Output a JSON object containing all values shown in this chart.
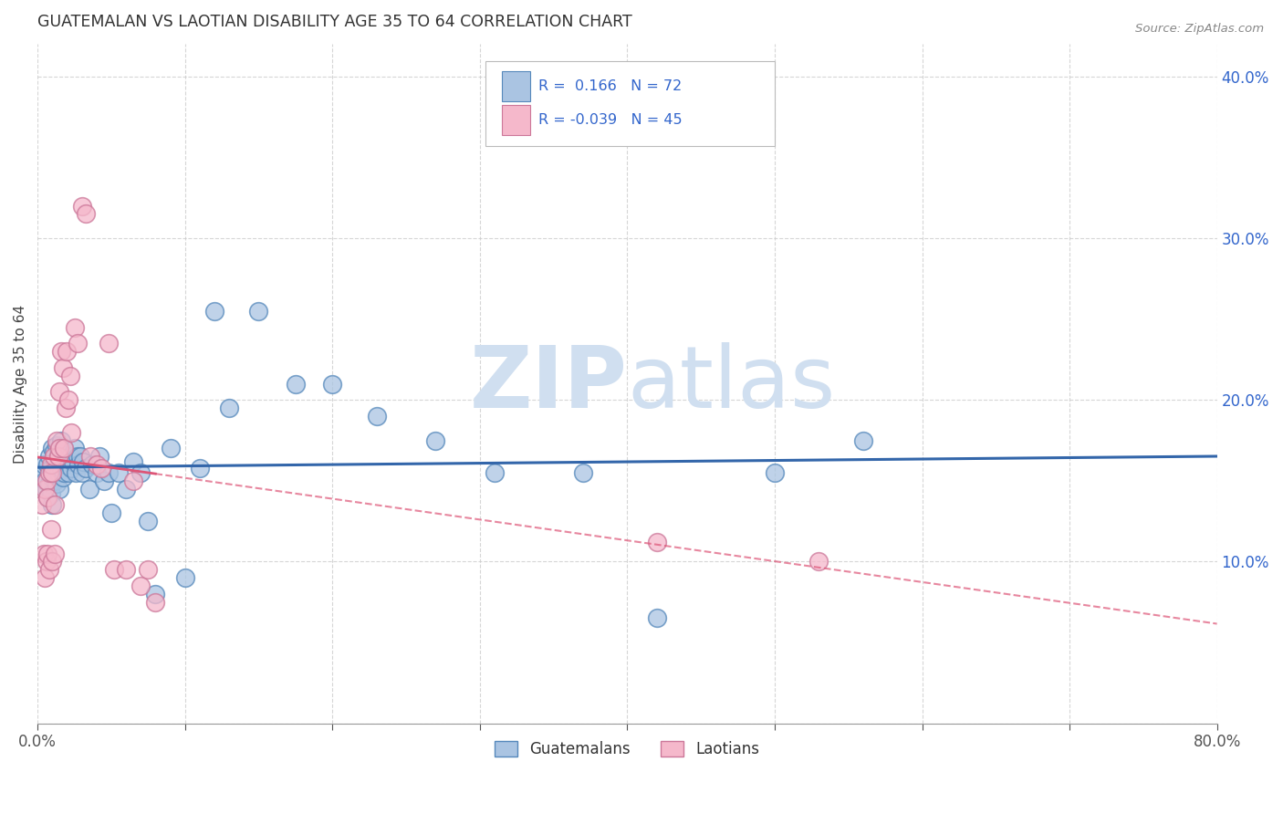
{
  "title": "GUATEMALAN VS LAOTIAN DISABILITY AGE 35 TO 64 CORRELATION CHART",
  "source": "Source: ZipAtlas.com",
  "ylabel": "Disability Age 35 to 64",
  "xlim": [
    0.0,
    0.8
  ],
  "ylim": [
    0.0,
    0.42
  ],
  "guatemalan_R": 0.166,
  "guatemalan_N": 72,
  "laotian_R": -0.039,
  "laotian_N": 45,
  "guatemalan_color": "#aac4e2",
  "guatemalan_edge": "#5588bb",
  "laotian_color": "#f5b8cb",
  "laotian_edge": "#cc7799",
  "regression_guatemalan_color": "#3366aa",
  "regression_laotian_color": "#dd5577",
  "watermark_color": "#d0dff0",
  "background_color": "#ffffff",
  "grid_color": "#cccccc",
  "legend_text_color": "#3366cc",
  "guatemalan_x": [
    0.003,
    0.004,
    0.005,
    0.006,
    0.007,
    0.007,
    0.008,
    0.008,
    0.009,
    0.009,
    0.01,
    0.01,
    0.01,
    0.011,
    0.011,
    0.012,
    0.012,
    0.013,
    0.013,
    0.013,
    0.014,
    0.014,
    0.015,
    0.015,
    0.016,
    0.016,
    0.017,
    0.017,
    0.018,
    0.018,
    0.019,
    0.02,
    0.021,
    0.022,
    0.023,
    0.024,
    0.025,
    0.026,
    0.027,
    0.028,
    0.029,
    0.03,
    0.031,
    0.033,
    0.035,
    0.037,
    0.04,
    0.042,
    0.045,
    0.048,
    0.05,
    0.055,
    0.06,
    0.065,
    0.07,
    0.075,
    0.08,
    0.09,
    0.1,
    0.11,
    0.12,
    0.13,
    0.15,
    0.175,
    0.2,
    0.23,
    0.27,
    0.31,
    0.37,
    0.42,
    0.5,
    0.56
  ],
  "guatemalan_y": [
    0.155,
    0.16,
    0.15,
    0.145,
    0.14,
    0.16,
    0.148,
    0.165,
    0.142,
    0.158,
    0.152,
    0.17,
    0.135,
    0.155,
    0.168,
    0.15,
    0.162,
    0.148,
    0.158,
    0.172,
    0.155,
    0.165,
    0.145,
    0.16,
    0.158,
    0.175,
    0.152,
    0.168,
    0.155,
    0.17,
    0.16,
    0.162,
    0.155,
    0.165,
    0.158,
    0.162,
    0.17,
    0.155,
    0.165,
    0.16,
    0.165,
    0.155,
    0.162,
    0.158,
    0.145,
    0.16,
    0.155,
    0.165,
    0.15,
    0.155,
    0.13,
    0.155,
    0.145,
    0.162,
    0.155,
    0.125,
    0.08,
    0.17,
    0.09,
    0.158,
    0.255,
    0.195,
    0.255,
    0.21,
    0.21,
    0.19,
    0.175,
    0.155,
    0.155,
    0.065,
    0.155,
    0.175
  ],
  "laotian_x": [
    0.003,
    0.004,
    0.005,
    0.005,
    0.006,
    0.006,
    0.007,
    0.007,
    0.008,
    0.008,
    0.009,
    0.009,
    0.01,
    0.01,
    0.011,
    0.012,
    0.012,
    0.013,
    0.014,
    0.015,
    0.015,
    0.016,
    0.017,
    0.018,
    0.019,
    0.02,
    0.021,
    0.022,
    0.023,
    0.025,
    0.027,
    0.03,
    0.033,
    0.036,
    0.04,
    0.043,
    0.048,
    0.052,
    0.06,
    0.065,
    0.07,
    0.075,
    0.08,
    0.42,
    0.53
  ],
  "laotian_y": [
    0.135,
    0.105,
    0.145,
    0.09,
    0.15,
    0.1,
    0.14,
    0.105,
    0.155,
    0.095,
    0.16,
    0.12,
    0.155,
    0.1,
    0.165,
    0.135,
    0.105,
    0.175,
    0.165,
    0.205,
    0.17,
    0.23,
    0.22,
    0.17,
    0.195,
    0.23,
    0.2,
    0.215,
    0.18,
    0.245,
    0.235,
    0.32,
    0.315,
    0.165,
    0.16,
    0.158,
    0.235,
    0.095,
    0.095,
    0.15,
    0.085,
    0.095,
    0.075,
    0.112,
    0.1
  ]
}
